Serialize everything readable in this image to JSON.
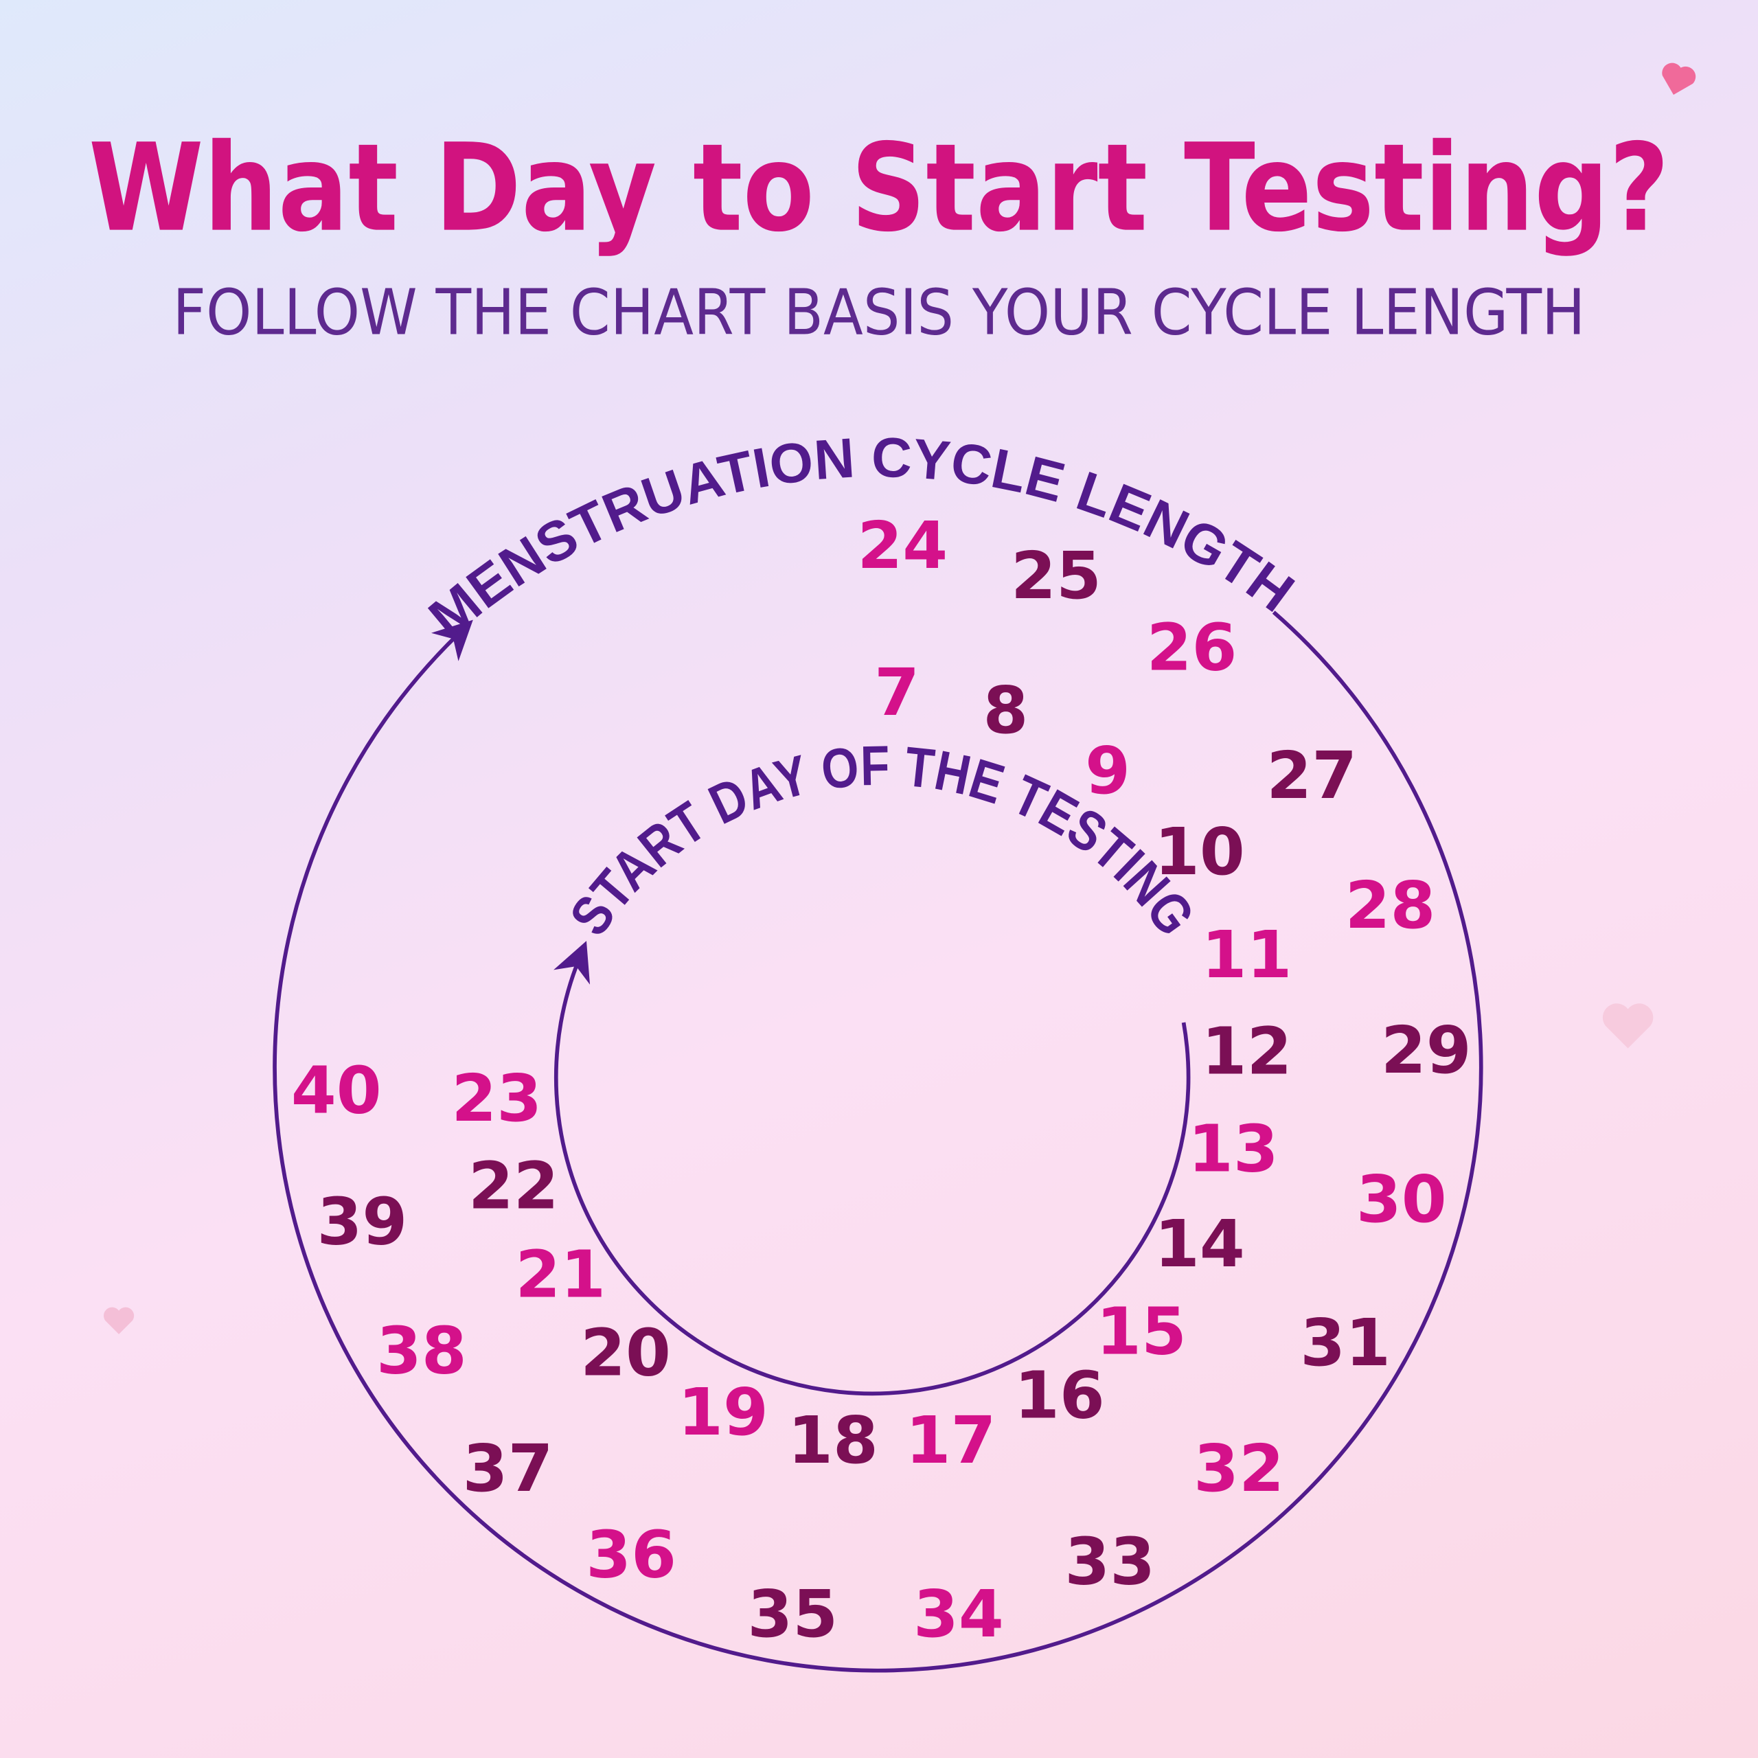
{
  "title": "What Day to Start Testing?",
  "subtitle": "FOLLOW THE CHART BASIS YOUR CYCLE LENGTH",
  "outer_label": "MENSTRUATION CYCLE LENGTH",
  "inner_label": "START DAY OF THE TESTING",
  "colors": {
    "title": "#d1137f",
    "subtitle": "#5e2a8f",
    "label": "#521b8c",
    "pink": "#d4118a",
    "dark": "#7b0f55",
    "circle": "#521b8c"
  },
  "pairs": [
    {
      "cycle_length": "24",
      "start_day": "7"
    },
    {
      "cycle_length": "25",
      "start_day": "8"
    },
    {
      "cycle_length": "26",
      "start_day": "9"
    },
    {
      "cycle_length": "27",
      "start_day": "10"
    },
    {
      "cycle_length": "28",
      "start_day": "11"
    },
    {
      "cycle_length": "29",
      "start_day": "12"
    },
    {
      "cycle_length": "30",
      "start_day": "13"
    },
    {
      "cycle_length": "31",
      "start_day": "14"
    },
    {
      "cycle_length": "32",
      "start_day": "15"
    },
    {
      "cycle_length": "33",
      "start_day": "16"
    },
    {
      "cycle_length": "34",
      "start_day": "17"
    },
    {
      "cycle_length": "35",
      "start_day": "18"
    },
    {
      "cycle_length": "36",
      "start_day": "19"
    },
    {
      "cycle_length": "37",
      "start_day": "20"
    },
    {
      "cycle_length": "38",
      "start_day": "21"
    },
    {
      "cycle_length": "39",
      "start_day": "22"
    },
    {
      "cycle_length": "40",
      "start_day": "23"
    }
  ]
}
